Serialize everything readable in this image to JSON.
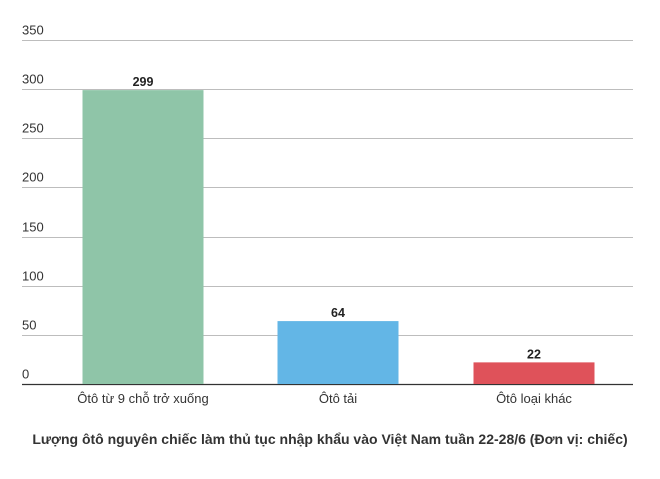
{
  "chart_data": {
    "type": "bar",
    "categories": [
      "Ôtô từ 9 chỗ trở xuống",
      "Ôtô tải",
      "Ôtô loại khác"
    ],
    "values": [
      299,
      64,
      22
    ],
    "value_labels": [
      "299",
      "64",
      "22"
    ],
    "colors": [
      "#8fc5a8",
      "#63b6e6",
      "#df525a"
    ],
    "title": "Lượng ôtô nguyên chiếc làm thủ tục nhập khẩu vào Việt Nam tuần 22-28/6 (Đơn vị: chiếc)",
    "xlabel": "",
    "ylabel": "",
    "ylim": [
      0,
      350
    ],
    "yticks": [
      "0",
      "50",
      "100",
      "150",
      "200",
      "250",
      "300",
      "350"
    ],
    "grid": true,
    "legend": "none"
  }
}
